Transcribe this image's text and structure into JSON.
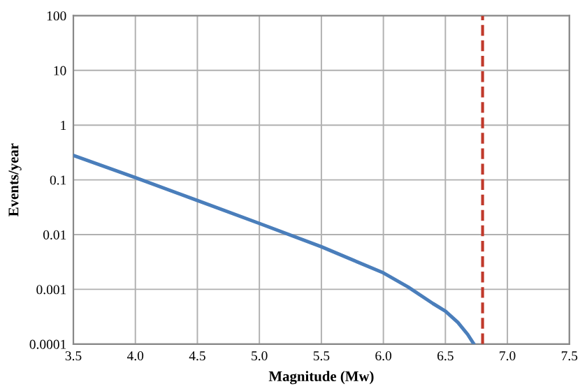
{
  "chart_data": {
    "type": "line",
    "xlabel": "Magnitude (Mw)",
    "ylabel": "Events/year",
    "log": "y",
    "series": [
      {
        "color": "#4a7ebb",
        "x": [
          3.5,
          4.0,
          4.5,
          5.0,
          5.5,
          6.0,
          6.2,
          6.4,
          6.5,
          6.6,
          6.68,
          6.73
        ],
        "values": [
          0.28,
          0.11,
          0.042,
          0.016,
          0.006,
          0.002,
          0.0011,
          0.00055,
          0.0004,
          0.00025,
          0.00015,
          0.0001
        ]
      }
    ],
    "xlim": [
      3.5,
      7.5
    ],
    "xticks": [
      {
        "value": 3.5,
        "label": "3.5"
      },
      {
        "value": 4,
        "label": "4.0"
      },
      {
        "value": 4.5,
        "label": "4.5"
      },
      {
        "value": 5,
        "label": "5.0"
      },
      {
        "value": 5.5,
        "label": "5.5"
      },
      {
        "value": 6,
        "label": "6.0"
      },
      {
        "value": 6.5,
        "label": "6.5"
      },
      {
        "value": 7,
        "label": "7.0"
      },
      {
        "value": 7.5,
        "label": "7.5"
      }
    ],
    "ylim": [
      0.0001,
      100
    ],
    "yticks": [
      {
        "value": 0.0001,
        "label": "0.0001"
      },
      {
        "value": 0.001,
        "label": "0.001"
      },
      {
        "value": 0.01,
        "label": "0.01"
      },
      {
        "value": 0.1,
        "label": "0.1"
      },
      {
        "value": 1,
        "label": "1"
      },
      {
        "value": 10,
        "label": "10"
      },
      {
        "value": 100,
        "label": "100"
      }
    ],
    "grid": true,
    "marker": "none",
    "line_style": "solid",
    "ref_lines": [
      {
        "axis": "x",
        "value": 6.8,
        "color": "#c0392b",
        "line_style": "dashed"
      }
    ]
  }
}
